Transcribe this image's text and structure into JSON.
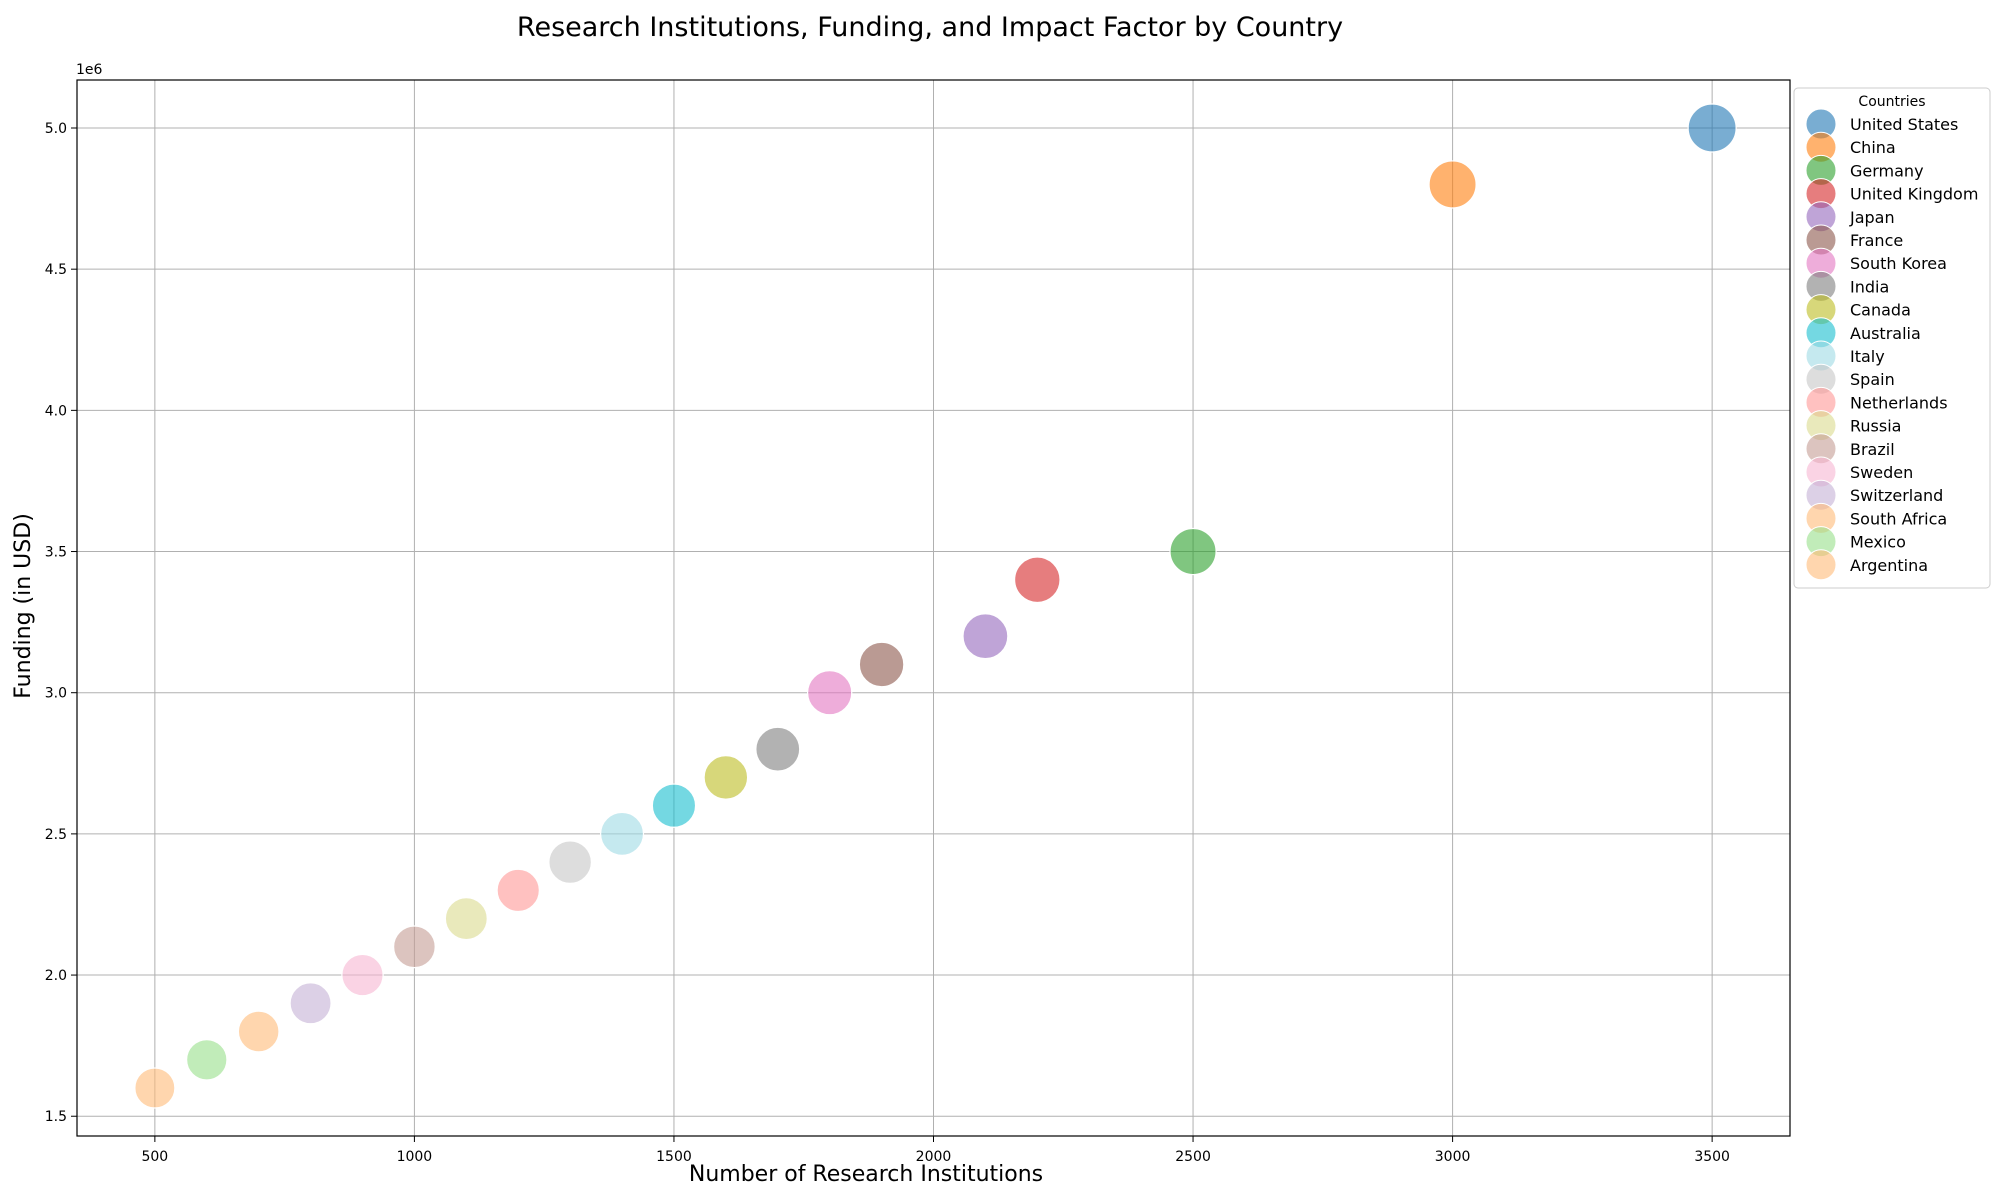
{
  "chart_data": {
    "type": "scatter",
    "title": "Research Institutions, Funding, and Impact Factor by Country",
    "xlabel": "Number of Research Institutions",
    "ylabel": "Funding (in USD)",
    "y_offset_label": "1e6",
    "xlim": [
      350,
      3650
    ],
    "ylim": [
      1430000,
      5170000
    ],
    "x_ticks": [
      500,
      1000,
      1500,
      2000,
      2500,
      3000,
      3500
    ],
    "x_tick_labels": [
      "500",
      "1000",
      "1500",
      "2000",
      "2500",
      "3000",
      "3500"
    ],
    "y_ticks": [
      1500000,
      2000000,
      2500000,
      3000000,
      3500000,
      4000000,
      4500000,
      5000000
    ],
    "y_tick_labels": [
      "1.5",
      "2.0",
      "2.5",
      "3.0",
      "3.5",
      "4.0",
      "4.5",
      "5.0"
    ],
    "grid": true,
    "legend_title": "Countries",
    "legend_position": "outside-right",
    "marker_alpha": 0.6,
    "series": [
      {
        "name": "United States",
        "x": 3500,
        "y": 5000000,
        "size": 9.8,
        "color": "#1f77b4"
      },
      {
        "name": "China",
        "x": 3000,
        "y": 4800000,
        "size": 9.5,
        "color": "#ff7f0e"
      },
      {
        "name": "Germany",
        "x": 2500,
        "y": 3500000,
        "size": 9.2,
        "color": "#2ca02c"
      },
      {
        "name": "United Kingdom",
        "x": 2200,
        "y": 3400000,
        "size": 9.0,
        "color": "#d62728"
      },
      {
        "name": "Japan",
        "x": 2100,
        "y": 3200000,
        "size": 8.8,
        "color": "#9467bd"
      },
      {
        "name": "France",
        "x": 1900,
        "y": 3100000,
        "size": 8.7,
        "color": "#8c564b"
      },
      {
        "name": "South Korea",
        "x": 1800,
        "y": 3000000,
        "size": 8.6,
        "color": "#e377c2"
      },
      {
        "name": "India",
        "x": 1700,
        "y": 2800000,
        "size": 8.5,
        "color": "#7f7f7f"
      },
      {
        "name": "Canada",
        "x": 1600,
        "y": 2700000,
        "size": 8.4,
        "color": "#bcbd22"
      },
      {
        "name": "Australia",
        "x": 1500,
        "y": 2600000,
        "size": 8.3,
        "color": "#17becf"
      },
      {
        "name": "Italy",
        "x": 1400,
        "y": 2500000,
        "size": 8.2,
        "color": "#9edae5"
      },
      {
        "name": "Spain",
        "x": 1300,
        "y": 2400000,
        "size": 8.1,
        "color": "#c7c7c7"
      },
      {
        "name": "Netherlands",
        "x": 1200,
        "y": 2300000,
        "size": 8.0,
        "color": "#ff9896"
      },
      {
        "name": "Russia",
        "x": 1100,
        "y": 2200000,
        "size": 7.9,
        "color": "#dbdb8d"
      },
      {
        "name": "Brazil",
        "x": 1000,
        "y": 2100000,
        "size": 7.8,
        "color": "#c49c94"
      },
      {
        "name": "Sweden",
        "x": 900,
        "y": 2000000,
        "size": 7.7,
        "color": "#f7b6d2"
      },
      {
        "name": "Switzerland",
        "x": 800,
        "y": 1900000,
        "size": 7.6,
        "color": "#c5b0d5"
      },
      {
        "name": "South Africa",
        "x": 700,
        "y": 1800000,
        "size": 7.5,
        "color": "#ffbb78"
      },
      {
        "name": "Mexico",
        "x": 600,
        "y": 1700000,
        "size": 7.4,
        "color": "#98df8a"
      },
      {
        "name": "Argentina",
        "x": 500,
        "y": 1600000,
        "size": 7.3,
        "color": "#ffbb78"
      }
    ]
  }
}
